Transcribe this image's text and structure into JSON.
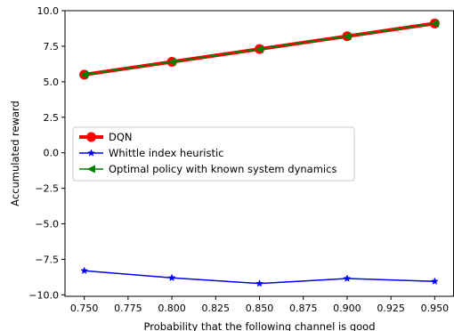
{
  "chart_data": {
    "type": "line",
    "xlabel": "Probability that the following channel is good",
    "ylabel": "Accumulated reward",
    "x": [
      0.75,
      0.8,
      0.85,
      0.9,
      0.95
    ],
    "xlim": [
      0.739,
      0.961
    ],
    "ylim": [
      -10.1,
      10.0
    ],
    "x_ticks": [
      "0.750",
      "0.775",
      "0.800",
      "0.825",
      "0.850",
      "0.875",
      "0.900",
      "0.925",
      "0.950"
    ],
    "y_ticks": [
      "10.0",
      "7.5",
      "5.0",
      "2.5",
      "0.0",
      "−2.5",
      "−5.0",
      "−7.5",
      "−10.0"
    ],
    "x_tick_values": [
      0.75,
      0.775,
      0.8,
      0.825,
      0.85,
      0.875,
      0.9,
      0.925,
      0.95
    ],
    "y_tick_values": [
      10.0,
      7.5,
      5.0,
      2.5,
      0.0,
      -2.5,
      -5.0,
      -7.5,
      -10.0
    ],
    "grid": false,
    "legend_position": "center-left",
    "series": [
      {
        "name": "DQN",
        "values": [
          5.5,
          6.4,
          7.3,
          8.2,
          9.1
        ],
        "color": "#ff0000",
        "marker": "circle"
      },
      {
        "name": "Whittle index heuristic",
        "values": [
          -8.3,
          -8.8,
          -9.2,
          -8.85,
          -9.05
        ],
        "color": "#0000ff",
        "marker": "star"
      },
      {
        "name": "Optimal policy with known system dynamics",
        "values": [
          5.5,
          6.4,
          7.3,
          8.2,
          9.1
        ],
        "color": "#008000",
        "marker": "triangle-left"
      }
    ]
  }
}
